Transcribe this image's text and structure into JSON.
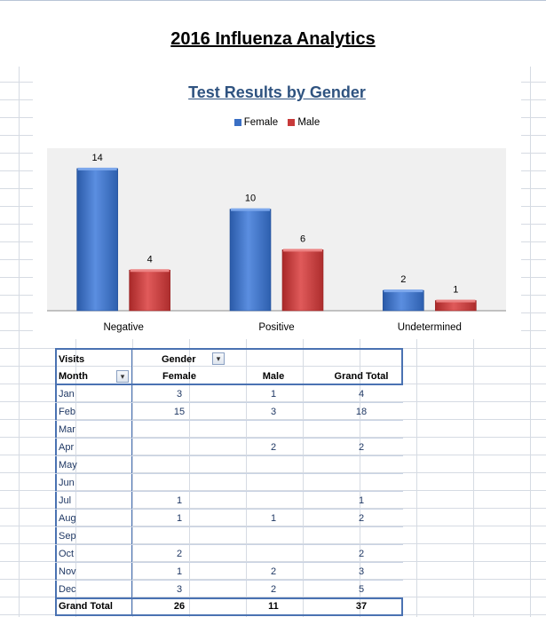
{
  "page_title": "2016 Influenza Analytics",
  "chart_data": {
    "type": "bar",
    "title": "Test Results by Gender",
    "categories": [
      "Negative",
      "Positive",
      "Undetermined"
    ],
    "series": [
      {
        "name": "Female",
        "values": [
          14,
          10,
          2
        ],
        "color": "#3a6fc4"
      },
      {
        "name": "Male",
        "values": [
          4,
          6,
          1
        ],
        "color": "#c83a3a"
      }
    ],
    "ylim": [
      0,
      16
    ],
    "legend_position": "top",
    "grid": false
  },
  "pivot": {
    "visits_label": "Visits",
    "gender_label": "Gender",
    "month_label": "Month",
    "columns": [
      "Female",
      "Male",
      "Grand Total"
    ],
    "rows": [
      {
        "month": "Jan",
        "female": "3",
        "male": "1",
        "total": "4"
      },
      {
        "month": "Feb",
        "female": "15",
        "male": "3",
        "total": "18"
      },
      {
        "month": "Mar",
        "female": "",
        "male": "",
        "total": ""
      },
      {
        "month": "Apr",
        "female": "",
        "male": "2",
        "total": "2"
      },
      {
        "month": "May",
        "female": "",
        "male": "",
        "total": ""
      },
      {
        "month": "Jun",
        "female": "",
        "male": "",
        "total": ""
      },
      {
        "month": "Jul",
        "female": "1",
        "male": "",
        "total": "1"
      },
      {
        "month": "Aug",
        "female": "1",
        "male": "1",
        "total": "2"
      },
      {
        "month": "Sep",
        "female": "",
        "male": "",
        "total": ""
      },
      {
        "month": "Oct",
        "female": "2",
        "male": "",
        "total": "2"
      },
      {
        "month": "Nov",
        "female": "1",
        "male": "2",
        "total": "3"
      },
      {
        "month": "Dec",
        "female": "3",
        "male": "2",
        "total": "5"
      }
    ],
    "grand_total": {
      "label": "Grand Total",
      "female": "26",
      "male": "11",
      "total": "37"
    }
  }
}
